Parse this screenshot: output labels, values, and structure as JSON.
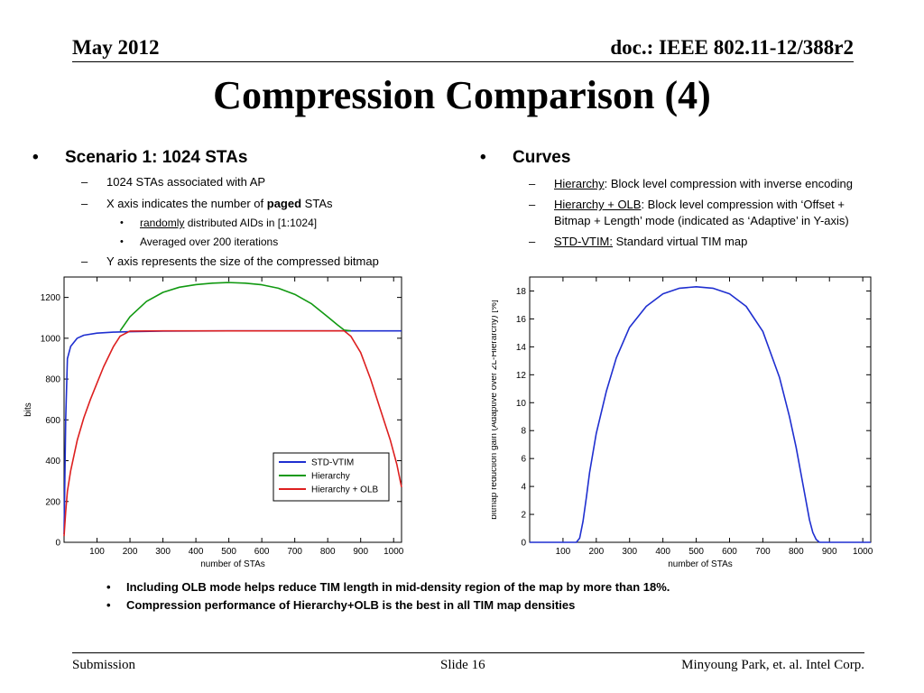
{
  "header": {
    "date": "May 2012",
    "doc": "doc.: IEEE 802.11-12/388r2"
  },
  "title": "Compression Comparison (4)",
  "left": {
    "heading": "Scenario 1: 1024 STAs",
    "items": {
      "a": "1024 STAs associated with AP",
      "b_pre": "X axis indicates the number of ",
      "b_bold": "paged",
      "b_post": " STAs",
      "c_u": "randomly",
      "c_post": " distributed AIDs in [1:1024]",
      "d": "Averaged over 200 iterations",
      "e": "Y axis represents the size of the compressed bitmap"
    }
  },
  "right": {
    "heading": "Curves",
    "items": {
      "a_u": "Hierarchy",
      "a_post": ": Block level compression with inverse encoding",
      "b_u": "Hierarchy + OLB",
      "b_post1": ": Block level compression with ‘Offset +",
      "b_post2": "Bitmap + Length’ mode (indicated as ‘Adaptive’ in Y-axis)",
      "c_u": "STD-VTIM:",
      "c_post": " Standard  virtual TIM map"
    }
  },
  "bullet_glyph": "•",
  "dash_glyph": "–",
  "notes": {
    "n1": "Including OLB mode helps reduce TIM length in mid-density region of the map by more than 18%.",
    "n2": "Compression performance of Hierarchy+OLB is the best in all TIM map densities"
  },
  "footer": {
    "left": "Submission",
    "mid": "Slide 16",
    "right": "Minyoung Park, et. al. Intel Corp."
  },
  "chart_data": [
    {
      "type": "line",
      "xlabel": "number of STAs",
      "ylabel": "bits",
      "xlim": [
        0,
        1024
      ],
      "ylim": [
        0,
        1300
      ],
      "xticks": [
        100,
        200,
        300,
        400,
        500,
        600,
        700,
        800,
        900,
        1000
      ],
      "yticks": [
        0,
        200,
        400,
        600,
        800,
        1000,
        1200
      ],
      "legend_position": "bottom-right",
      "series": [
        {
          "name": "STD-VTIM",
          "color": "#1f2fd0",
          "x": [
            0,
            5,
            10,
            20,
            40,
            60,
            100,
            150,
            200,
            300,
            500,
            800,
            1024
          ],
          "y": [
            40,
            600,
            900,
            960,
            1000,
            1015,
            1025,
            1030,
            1032,
            1035,
            1036,
            1036,
            1036
          ]
        },
        {
          "name": "Hierarchy",
          "color": "#119911",
          "x": [
            170,
            200,
            250,
            300,
            350,
            400,
            450,
            500,
            550,
            600,
            650,
            700,
            750,
            800,
            830,
            850,
            870
          ],
          "y": [
            1036,
            1105,
            1180,
            1225,
            1250,
            1263,
            1270,
            1273,
            1270,
            1262,
            1245,
            1215,
            1170,
            1105,
            1065,
            1040,
            1036
          ]
        },
        {
          "name": "Hierarchy + OLB",
          "color": "#dd1f1f",
          "x": [
            0,
            5,
            10,
            20,
            40,
            60,
            80,
            100,
            120,
            150,
            170,
            200,
            300,
            500,
            700,
            850,
            870,
            900,
            930,
            960,
            990,
            1010,
            1024
          ],
          "y": [
            30,
            150,
            250,
            350,
            500,
            610,
            700,
            780,
            860,
            960,
            1010,
            1035,
            1036,
            1036,
            1036,
            1036,
            1010,
            930,
            800,
            650,
            500,
            380,
            270
          ]
        }
      ]
    },
    {
      "type": "line",
      "xlabel": "number of STAs",
      "ylabel": "bitmap reduction gain (Adaptive over 2L-Hierarchy) [%]",
      "xlim": [
        0,
        1024
      ],
      "ylim": [
        0,
        19
      ],
      "xticks": [
        100,
        200,
        300,
        400,
        500,
        600,
        700,
        800,
        900,
        1000
      ],
      "yticks": [
        0,
        2,
        4,
        6,
        8,
        10,
        12,
        14,
        16,
        18
      ],
      "series": [
        {
          "name": "",
          "color": "#1f2fd0",
          "x": [
            0,
            140,
            150,
            160,
            170,
            180,
            200,
            230,
            260,
            300,
            350,
            400,
            450,
            500,
            550,
            600,
            650,
            700,
            750,
            780,
            800,
            820,
            840,
            850,
            860,
            870,
            1024
          ],
          "y": [
            0,
            0,
            0.3,
            1.5,
            3.2,
            5.0,
            7.8,
            10.8,
            13.2,
            15.4,
            16.9,
            17.8,
            18.2,
            18.3,
            18.2,
            17.8,
            16.9,
            15.1,
            11.8,
            9.0,
            6.8,
            4.2,
            1.6,
            0.7,
            0.2,
            0,
            0
          ]
        }
      ]
    }
  ]
}
